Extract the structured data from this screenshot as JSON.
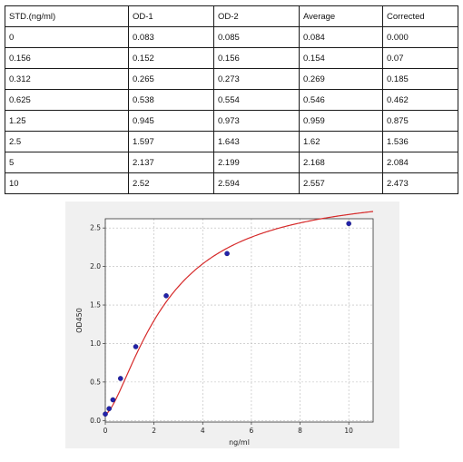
{
  "table": {
    "headers": [
      "STD.(ng/ml)",
      "OD-1",
      "OD-2",
      "Average",
      "Corrected"
    ],
    "rows": [
      [
        "0",
        "0.083",
        "0.085",
        "0.084",
        "0.000"
      ],
      [
        "0.156",
        "0.152",
        "0.156",
        "0.154",
        "0.07"
      ],
      [
        "0.312",
        "0.265",
        "0.273",
        "0.269",
        "0.185"
      ],
      [
        "0.625",
        "0.538",
        "0.554",
        "0.546",
        "0.462"
      ],
      [
        "1.25",
        "0.945",
        "0.973",
        "0.959",
        "0.875"
      ],
      [
        "2.5",
        "1.597",
        "1.643",
        "1.62",
        "1.536"
      ],
      [
        "5",
        "2.137",
        "2.199",
        "2.168",
        "2.084"
      ],
      [
        "10",
        "2.52",
        "2.594",
        "2.557",
        "2.473"
      ]
    ]
  },
  "chart_data": {
    "type": "scatter",
    "title": "",
    "xlabel": "ng/ml",
    "ylabel": "OD450",
    "xlim": [
      0,
      11
    ],
    "ylim": [
      -0.02,
      2.62
    ],
    "xticks": [
      0,
      2,
      4,
      6,
      8,
      10
    ],
    "yticks": [
      0.0,
      0.5,
      1.0,
      1.5,
      2.0,
      2.5
    ],
    "xtick_labels": [
      "0",
      "2",
      "4",
      "6",
      "8",
      "10"
    ],
    "ytick_labels": [
      "0.0",
      "0.5",
      "1.0",
      "1.5",
      "2.0",
      "2.5"
    ],
    "grid": true,
    "series": [
      {
        "points": [
          {
            "x": 0,
            "y": 0.084
          },
          {
            "x": 0.156,
            "y": 0.154
          },
          {
            "x": 0.312,
            "y": 0.269
          },
          {
            "x": 0.625,
            "y": 0.546
          },
          {
            "x": 1.25,
            "y": 0.959
          },
          {
            "x": 2.5,
            "y": 1.62
          },
          {
            "x": 5,
            "y": 2.168
          },
          {
            "x": 10,
            "y": 2.557
          }
        ],
        "marker_color": "#2222aa"
      }
    ],
    "fit_curve": {
      "model": "4PL",
      "params": {
        "a": 0.08,
        "b": 1.5,
        "c": 2.5,
        "d": 3.0
      },
      "x_range": [
        0,
        11
      ],
      "color": "#d62a2a"
    }
  }
}
